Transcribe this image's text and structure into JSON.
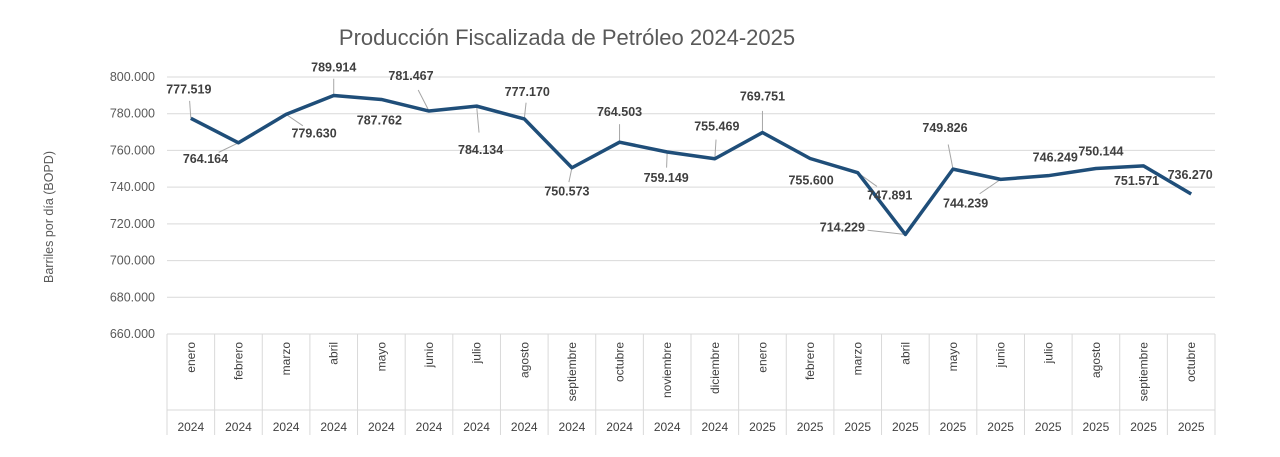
{
  "chart_data": {
    "type": "line",
    "title": "Producción Fiscalizada de Petróleo 2024-2025",
    "ylabel": "Barriles por día (BOPD)",
    "xlabel": "",
    "ylim": [
      660000,
      800000
    ],
    "yticks": [
      660000,
      680000,
      700000,
      720000,
      740000,
      760000,
      780000,
      800000
    ],
    "ytick_labels": [
      "660.000",
      "680.000",
      "700.000",
      "720.000",
      "740.000",
      "760.000",
      "780.000",
      "800.000"
    ],
    "grid": true,
    "legend": "none",
    "line_color": "#1F4E79",
    "categories": [
      {
        "month": "enero",
        "year": "2024"
      },
      {
        "month": "febrero",
        "year": "2024"
      },
      {
        "month": "marzo",
        "year": "2024"
      },
      {
        "month": "abril",
        "year": "2024"
      },
      {
        "month": "mayo",
        "year": "2024"
      },
      {
        "month": "junio",
        "year": "2024"
      },
      {
        "month": "julio",
        "year": "2024"
      },
      {
        "month": "agosto",
        "year": "2024"
      },
      {
        "month": "septiembre",
        "year": "2024"
      },
      {
        "month": "octubre",
        "year": "2024"
      },
      {
        "month": "noviembre",
        "year": "2024"
      },
      {
        "month": "diciembre",
        "year": "2024"
      },
      {
        "month": "enero",
        "year": "2025"
      },
      {
        "month": "febrero",
        "year": "2025"
      },
      {
        "month": "marzo",
        "year": "2025"
      },
      {
        "month": "abril",
        "year": "2025"
      },
      {
        "month": "mayo",
        "year": "2025"
      },
      {
        "month": "junio",
        "year": "2025"
      },
      {
        "month": "julio",
        "year": "2025"
      },
      {
        "month": "agosto",
        "year": "2025"
      },
      {
        "month": "septiembre",
        "year": "2025"
      },
      {
        "month": "octubre",
        "year": "2025"
      }
    ],
    "values": [
      777519,
      764164,
      779630,
      789914,
      787762,
      781467,
      784134,
      777170,
      750573,
      764503,
      759149,
      755469,
      769751,
      755600,
      747891,
      714229,
      749826,
      744239,
      746249,
      750144,
      751571,
      736270
    ],
    "data_labels": [
      "777.519",
      "764.164",
      "779.630",
      "789.914",
      "787.762",
      "781.467",
      "784.134",
      "777.170",
      "750.573",
      "764.503",
      "759.149",
      "755.469",
      "769.751",
      "755.600",
      "747.891",
      "714.229",
      "749.826",
      "744.239",
      "746.249",
      "750.144",
      "751.571",
      "736.270"
    ]
  }
}
